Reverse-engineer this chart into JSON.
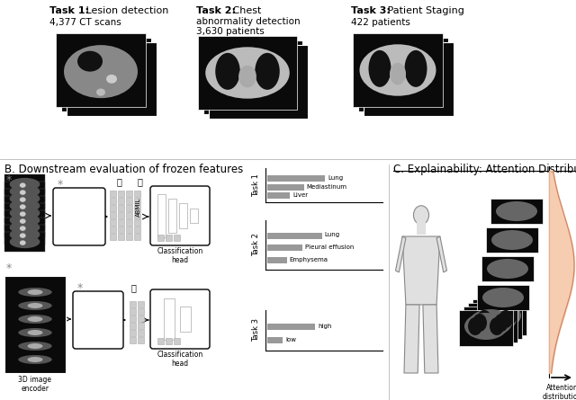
{
  "bg_color": "#ffffff",
  "task1_bold": "Task 1:",
  "task1_rest": " Lesion detection",
  "task1_sub": "4,377 CT scans",
  "task2_bold": "Task 2:",
  "task2_line1": " Chest",
  "task2_line2": "abnormality detection",
  "task2_line3": "3,630 patients",
  "task3_bold": "Task 3:",
  "task3_rest": " Patient Staging",
  "task3_sub": "422 patients",
  "section_b": "B. Downstream evaluation of frozen features",
  "section_c": "C. Explainability: Attention Distribution",
  "task1_labels": [
    "Lung",
    "Mediastinum",
    "Liver"
  ],
  "task2_labels": [
    "Lung",
    "Pleural effusion",
    "Emphysema"
  ],
  "task3_labels": [
    "high",
    "low"
  ],
  "task1_bar_values": [
    0.82,
    0.52,
    0.32
  ],
  "task2_bar_values": [
    0.78,
    0.5,
    0.28
  ],
  "task3_bar_values": [
    0.68,
    0.22
  ],
  "bar_color": "#999999",
  "attention_peach": "#f5c5a3",
  "label_fontsize": 5.5,
  "section_fontsize": 8.5,
  "task_header_fontsize": 8,
  "sub_fontsize": 7.5,
  "encoder_label_fontsize": 5.5
}
